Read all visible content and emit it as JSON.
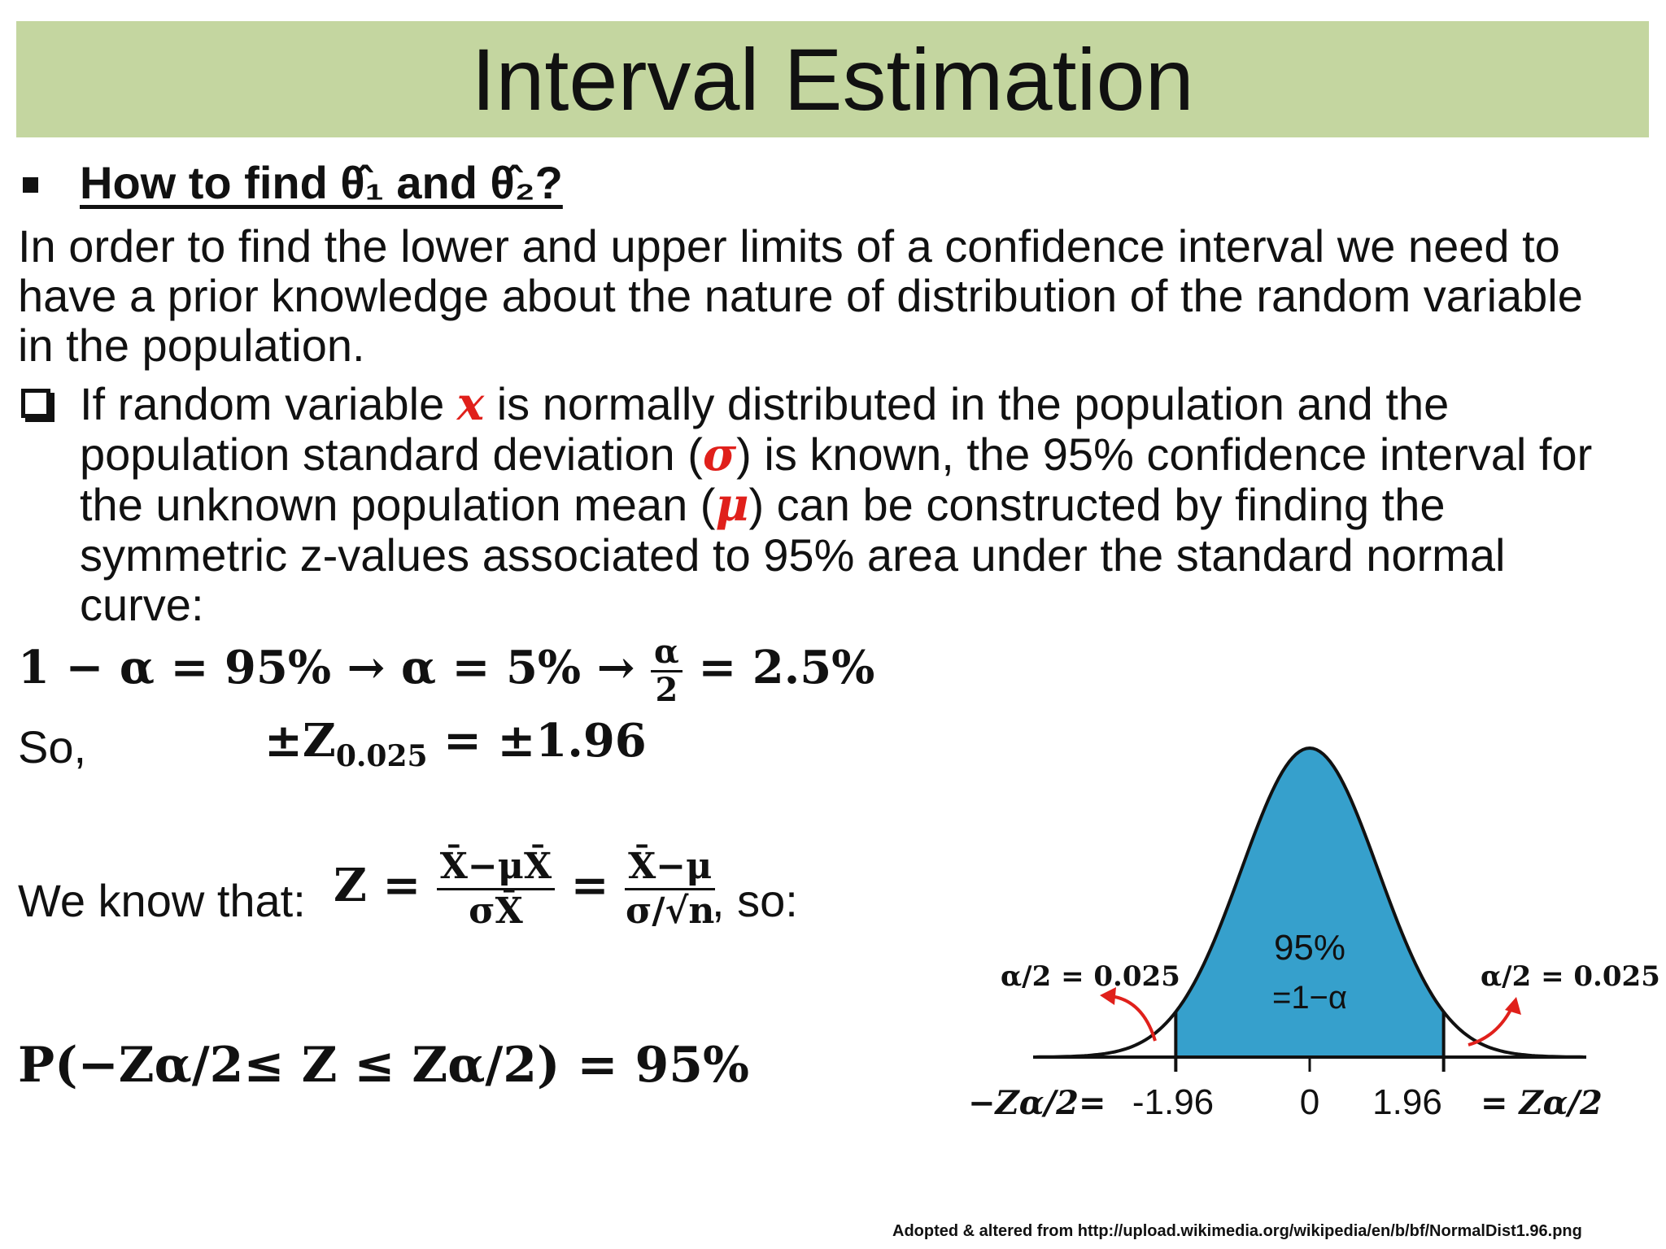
{
  "title": "Interval Estimation",
  "heading": "How to find θ̂₁ and θ̂₂?",
  "paragraph": {
    "lines": [
      "In order to find the lower and upper limits of a confidence interval we need to",
      "have a prior knowledge about the nature of distribution of the random variable",
      "in the population."
    ]
  },
  "item": {
    "line1_a": "If random variable ",
    "var_x": "x",
    "line1_b": "  is normally distributed in the population and the",
    "line2_a": "population standard deviation (",
    "sigma": "σ",
    "line2_b": ") is known, the 95% confidence interval for",
    "line3_a": "the unknown population mean (",
    "mu": "μ",
    "line3_b": ") can be constructed by finding the",
    "line4": "symmetric z-values associated to 95% area under the standard normal",
    "line5": "curve:"
  },
  "equations": {
    "alpha_chain_a": "1 − α = 95% → α = 5% → ",
    "alpha_num": "α",
    "alpha_den": "2",
    "alpha_chain_b": " = 2.5%",
    "so_label": "So,",
    "z_pm": "±Z",
    "z_sub": "0.025",
    "z_value": " = ±1.96",
    "weknow_label": "We know that: ",
    "z_lhs": "Z = ",
    "frac1_num": "X̄−μX̄",
    "frac1_den": "σX̄",
    "eq_sign": " = ",
    "frac2_num": "X̄−μ",
    "frac2_den": "σ/√n",
    "so_suffix": ", so:",
    "prob": "P(−Zα/2≤ Z ≤ Zα/2) = 95%"
  },
  "chart_data": {
    "type": "area",
    "curve": "standard normal",
    "shaded_region": [
      -1.96,
      1.96
    ],
    "center_label_1": "95%",
    "center_label_2": "=1−α",
    "tail_label_left": "α/2 = 0.025",
    "tail_label_right": "α/2 = 0.025",
    "tick_labels": [
      "-1.96",
      "0",
      "1.96"
    ],
    "left_axis_label": "−Zα/2=",
    "right_axis_label": "= Zα/2",
    "colors": {
      "shaded": "#36a0cc",
      "arrow": "#e0201b",
      "curve": "#111111"
    }
  },
  "footnote": "Adopted & altered  from http://upload.wikimedia.org/wikipedia/en/b/bf/NormalDist1.96.png"
}
